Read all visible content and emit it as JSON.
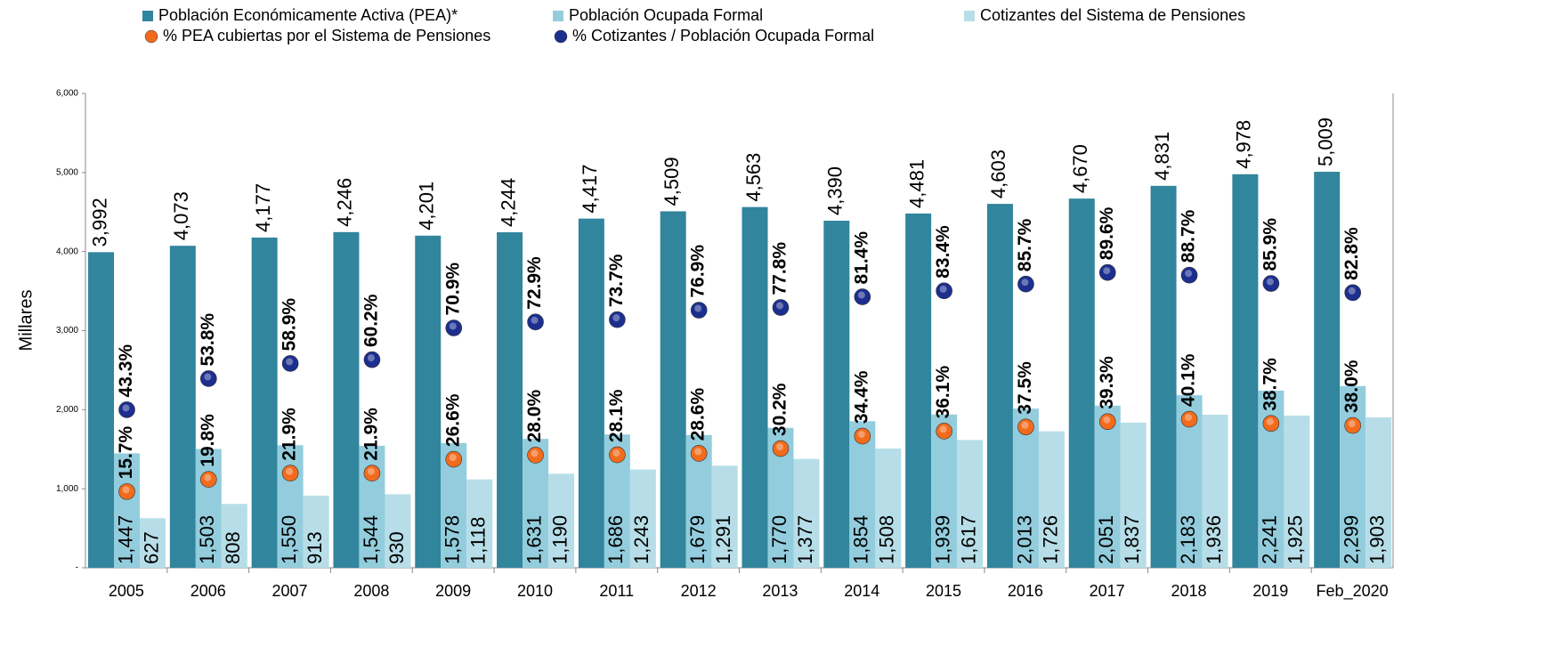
{
  "chart_data": {
    "type": "bar",
    "ylabel": "Millares",
    "categories": [
      "2005",
      "2006",
      "2007",
      "2008",
      "2009",
      "2010",
      "2011",
      "2012",
      "2013",
      "2014",
      "2015",
      "2016",
      "2017",
      "2018",
      "2019",
      "Feb_2020"
    ],
    "series": [
      {
        "name": "Población Económicamente Activa (PEA)*",
        "color": "#31859c",
        "values": [
          3992,
          4073,
          4177,
          4246,
          4201,
          4244,
          4417,
          4509,
          4563,
          4390,
          4481,
          4603,
          4670,
          4831,
          4978,
          5009
        ],
        "value_labels": [
          "3,992",
          "4,073",
          "4,177",
          "4,246",
          "4,201",
          "4,244",
          "4,417",
          "4,509",
          "4,563",
          "4,390",
          "4,481",
          "4,603",
          "4,670",
          "4,831",
          "4,978",
          "5,009"
        ]
      },
      {
        "name": "Población Ocupada Formal",
        "color": "#93cddd",
        "values": [
          1447,
          1503,
          1550,
          1544,
          1578,
          1631,
          1686,
          1679,
          1770,
          1854,
          1939,
          2013,
          2051,
          2183,
          2241,
          2299
        ],
        "value_labels": [
          "1,447",
          "1,503",
          "1,550",
          "1,544",
          "1,578",
          "1,631",
          "1,686",
          "1,679",
          "1,770",
          "1,854",
          "1,939",
          "2,013",
          "2,051",
          "2,183",
          "2,241",
          "2,299"
        ]
      },
      {
        "name": "Cotizantes del Sistema de Pensiones",
        "color": "#b7dee8",
        "values": [
          627,
          808,
          913,
          930,
          1118,
          1190,
          1243,
          1291,
          1377,
          1508,
          1617,
          1726,
          1837,
          1936,
          1925,
          1903
        ],
        "value_labels": [
          "627",
          "808",
          "913",
          "930",
          "1,118",
          "1,190",
          "1,243",
          "1,291",
          "1,377",
          "1,508",
          "1,617",
          "1,726",
          "1,837",
          "1,936",
          "1,925",
          "1,903"
        ]
      },
      {
        "name": "% PEA cubiertas por el Sistema de Pensiones",
        "color": "#f26b1d",
        "axis": "y2",
        "values": [
          15.7,
          19.8,
          21.9,
          21.9,
          26.6,
          28.0,
          28.1,
          28.6,
          30.2,
          34.4,
          36.1,
          37.5,
          39.3,
          40.1,
          38.7,
          38.0
        ],
        "value_labels": [
          "15.7%",
          "19.8%",
          "21.9%",
          "21.9%",
          "26.6%",
          "28.0%",
          "28.1%",
          "28.6%",
          "30.2%",
          "34.4%",
          "36.1%",
          "37.5%",
          "39.3%",
          "40.1%",
          "38.7%",
          "38.0%"
        ]
      },
      {
        "name": "% Cotizantes / Población Ocupada Formal",
        "color": "#1c2f8f",
        "axis": "y2",
        "values": [
          43.3,
          53.8,
          58.9,
          60.2,
          70.9,
          72.9,
          73.7,
          76.9,
          77.8,
          81.4,
          83.4,
          85.7,
          89.6,
          88.7,
          85.9,
          82.8
        ],
        "value_labels": [
          "43.3%",
          "53.8%",
          "58.9%",
          "60.2%",
          "70.9%",
          "72.9%",
          "73.7%",
          "76.9%",
          "77.8%",
          "81.4%",
          "83.4%",
          "85.7%",
          "89.6%",
          "88.7%",
          "85.9%",
          "82.8%"
        ]
      }
    ],
    "ylim": [
      0,
      6000
    ],
    "yticks": [
      {
        "value": 0,
        "label": "-"
      },
      {
        "value": 1000,
        "label": "1,000"
      },
      {
        "value": 2000,
        "label": "2,000"
      },
      {
        "value": 3000,
        "label": "3,000"
      },
      {
        "value": 4000,
        "label": "4,000"
      },
      {
        "value": 5000,
        "label": "5,000"
      },
      {
        "value": 6000,
        "label": "6,000"
      }
    ],
    "y2lim": [
      -10,
      150
    ]
  }
}
